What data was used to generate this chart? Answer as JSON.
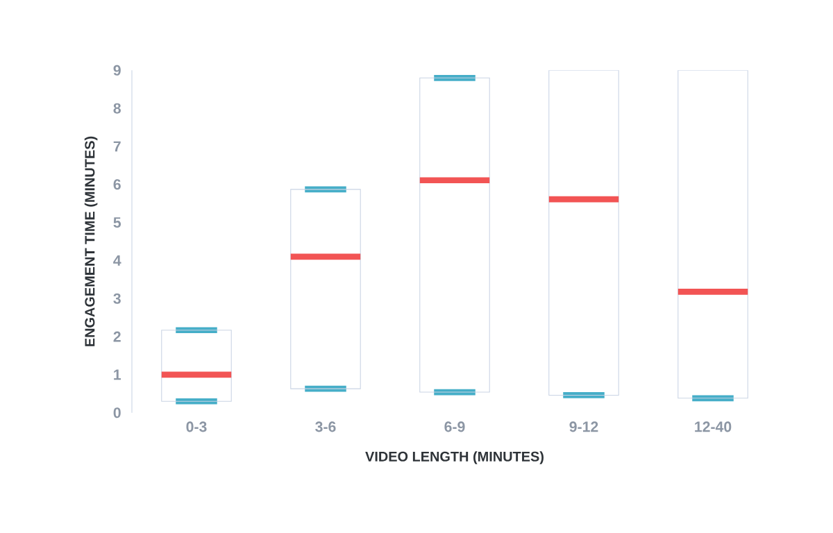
{
  "chart_data": {
    "type": "box",
    "xlabel": "VIDEO LENGTH (MINUTES)",
    "ylabel": "ENGAGEMENT TIME (MINUTES)",
    "categories": [
      "0-3",
      "3-6",
      "6-9",
      "9-12",
      "12-40"
    ],
    "boxes": [
      {
        "low": 0.3,
        "q1": 0.3,
        "median": 1.0,
        "q3": 2.17,
        "high": 2.17
      },
      {
        "low": 0.63,
        "q1": 0.63,
        "median": 4.1,
        "q3": 5.87,
        "high": 5.87
      },
      {
        "low": 0.54,
        "q1": 0.54,
        "median": 6.11,
        "q3": 8.8,
        "high": 8.8
      },
      {
        "low": 0.46,
        "q1": 0.46,
        "median": 5.61,
        "q3": 9,
        "high": 9
      },
      {
        "low": 0.38,
        "q1": 0.38,
        "median": 3.18,
        "q3": 9,
        "high": 9
      }
    ],
    "ylim": [
      0,
      9
    ],
    "yticks": [
      0,
      1,
      2,
      3,
      4,
      5,
      6,
      7,
      8,
      9
    ]
  }
}
